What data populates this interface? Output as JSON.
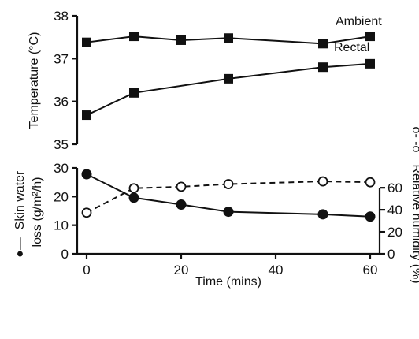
{
  "chart_data": [
    {
      "type": "line",
      "ylabel": "Temperature (°C)",
      "ylim": [
        35,
        38
      ],
      "yticks": [
        "35",
        "36",
        "37",
        "38"
      ],
      "xlim": [
        -2,
        62
      ],
      "grid": false,
      "series": [
        {
          "name": "Ambient",
          "marker": "filled-square",
          "line": "solid",
          "x": [
            0,
            10,
            20,
            30,
            50,
            60
          ],
          "y": [
            37.38,
            37.52,
            37.43,
            37.48,
            37.35,
            37.52
          ]
        },
        {
          "name": "Rectal",
          "marker": "filled-square",
          "line": "solid",
          "x": [
            0,
            10,
            20,
            30,
            50,
            60
          ],
          "y": [
            35.68,
            36.2,
            null,
            36.53,
            36.8,
            36.88
          ]
        }
      ]
    },
    {
      "type": "line",
      "xlabel": "Time (mins)",
      "xlim": [
        -2,
        62
      ],
      "xticks": [
        "0",
        "20",
        "40",
        "60"
      ],
      "xtick_values": [
        0,
        20,
        40,
        60
      ],
      "ylabel_left": "Skin water loss (g/m2/h)",
      "ylabel_right": "Relative humidity (%)",
      "ylim_left": [
        0,
        30
      ],
      "yticks_left": [
        "0",
        "10",
        "20",
        "30"
      ],
      "ylim_right": [
        0,
        78
      ],
      "yticks_right": [
        "0",
        "20",
        "40",
        "60"
      ],
      "grid": false,
      "series": [
        {
          "name": "Skin water loss",
          "axis": "left",
          "marker": "filled-circle",
          "line": "solid",
          "x": [
            0,
            10,
            20,
            30,
            50,
            60
          ],
          "y": [
            27.8,
            19.6,
            17.2,
            14.7,
            13.8,
            13.0
          ]
        },
        {
          "name": "Relative humidity",
          "axis": "right",
          "marker": "open-circle",
          "line": "dashed",
          "x": [
            0,
            10,
            20,
            30,
            50,
            60
          ],
          "y": [
            37.4,
            59.6,
            60.9,
            63.3,
            65.8,
            65.0
          ]
        }
      ]
    }
  ]
}
